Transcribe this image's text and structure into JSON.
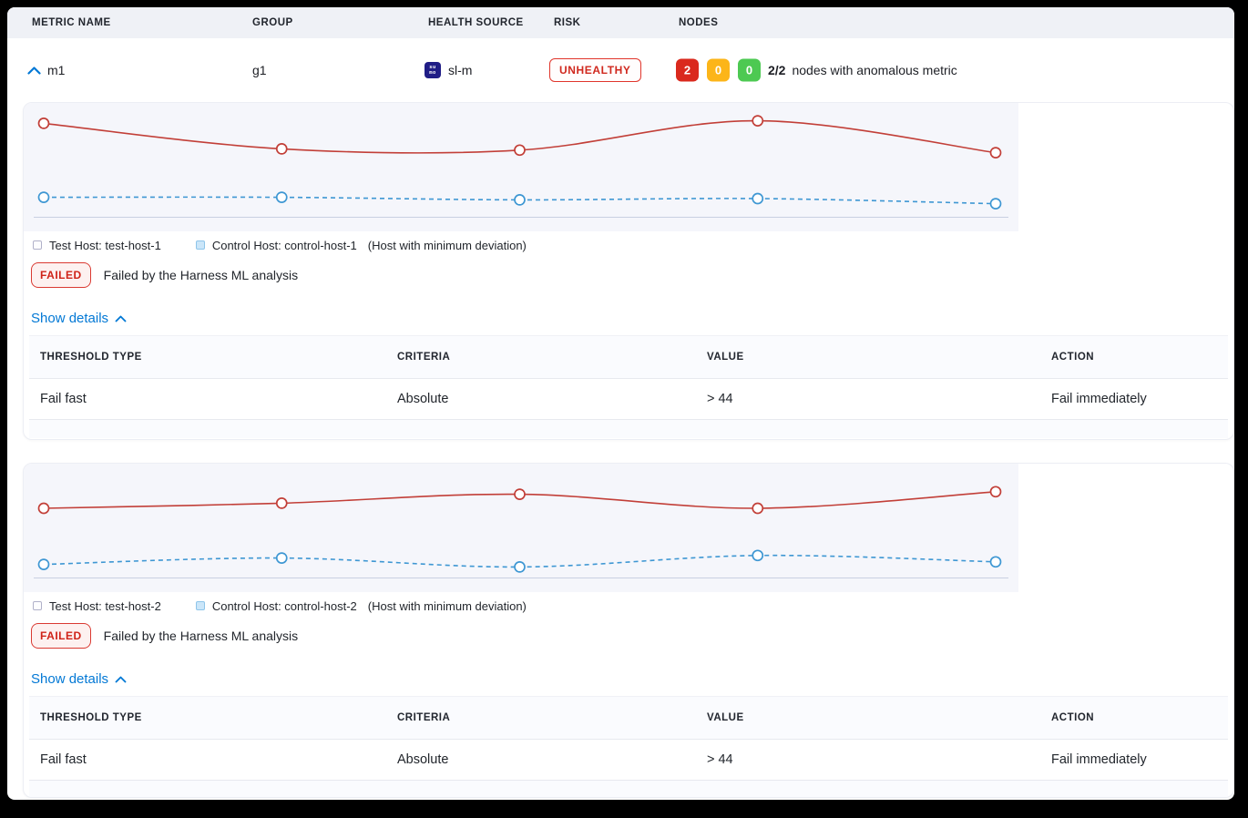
{
  "header": {
    "columns": [
      "METRIC NAME",
      "GROUP",
      "HEALTH SOURCE",
      "RISK",
      "NODES"
    ]
  },
  "row": {
    "metric_name": "m1",
    "group": "g1",
    "health_source": {
      "label": "sl-m",
      "icon_line1": "su",
      "icon_line2": "mo"
    },
    "risk": "UNHEALTHY",
    "nodes": {
      "counts": [
        {
          "value": "2",
          "color": "#da291d"
        },
        {
          "value": "0",
          "color": "#fcb519"
        },
        {
          "value": "0",
          "color": "#4dc952"
        }
      ],
      "summary_bold": "2/2",
      "summary_text": "nodes with anomalous metric"
    }
  },
  "sections": [
    {
      "legend": {
        "test_label": "Test Host: test-host-1",
        "control_label": "Control Host: control-host-1",
        "control_note": "(Host with minimum deviation)"
      },
      "status": {
        "badge": "FAILED",
        "message": "Failed by the Harness ML analysis"
      },
      "details_toggle": "Show details",
      "table": {
        "headers": [
          "THRESHOLD TYPE",
          "CRITERIA",
          "VALUE",
          "ACTION"
        ],
        "rows": [
          [
            "Fail fast",
            "Absolute",
            "> 44",
            "Fail immediately"
          ]
        ]
      }
    },
    {
      "legend": {
        "test_label": "Test Host: test-host-2",
        "control_label": "Control Host: control-host-2",
        "control_note": "(Host with minimum deviation)"
      },
      "status": {
        "badge": "FAILED",
        "message": "Failed by the Harness ML analysis"
      },
      "details_toggle": "Show details",
      "table": {
        "headers": [
          "THRESHOLD TYPE",
          "CRITERIA",
          "VALUE",
          "ACTION"
        ],
        "rows": [
          [
            "Fail fast",
            "Absolute",
            "> 44",
            "Fail immediately"
          ]
        ]
      }
    }
  ],
  "chart_data": [
    {
      "type": "line",
      "x": [
        1,
        2,
        3,
        4,
        5
      ],
      "series": [
        {
          "name": "Test Host: test-host-1",
          "color": "#c23f38",
          "style": "solid",
          "values": [
            84,
            64,
            63,
            86,
            61
          ]
        },
        {
          "name": "Control Host: control-host-1",
          "color": "#3e97d3",
          "style": "dashed",
          "values": [
            26,
            26,
            24,
            25,
            21
          ]
        }
      ],
      "ylim": [
        0,
        100
      ],
      "title": "",
      "xlabel": "",
      "ylabel": "",
      "grid": false,
      "axis_labels_visible": false,
      "legend_position": "bottom-left",
      "markers": "open-circle",
      "baseline": true
    },
    {
      "type": "line",
      "x": [
        1,
        2,
        3,
        4,
        5
      ],
      "series": [
        {
          "name": "Test Host: test-host-2",
          "color": "#c23f38",
          "style": "solid",
          "values": [
            65,
            69,
            76,
            65,
            78
          ]
        },
        {
          "name": "Control Host: control-host-2",
          "color": "#3e97d3",
          "style": "dashed",
          "values": [
            21,
            26,
            19,
            28,
            23
          ]
        }
      ],
      "ylim": [
        0,
        100
      ],
      "title": "",
      "xlabel": "",
      "ylabel": "",
      "grid": false,
      "axis_labels_visible": false,
      "legend_position": "bottom-left",
      "markers": "open-circle",
      "baseline": true
    }
  ],
  "colors": {
    "accent_blue": "#0278d5",
    "risk_red": "#d0281e",
    "failed_red": "#cf2318",
    "node_red": "#da291d",
    "node_amber": "#fcb519",
    "node_green": "#4dc952",
    "chart_test_red": "#c23f38",
    "chart_control_blue": "#3e97d3",
    "sumo_navy": "#201d86",
    "plot_bg": "#f5f6fb",
    "header_band_bg": "#eff1f6"
  }
}
